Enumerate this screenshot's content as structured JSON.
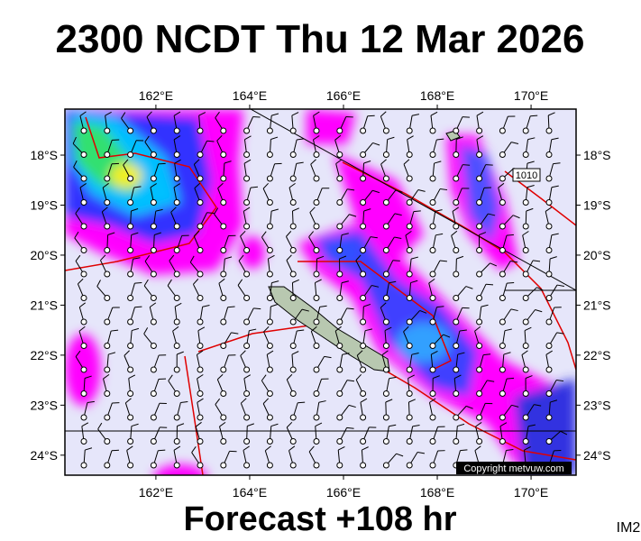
{
  "header": {
    "title": "2300 NCDT Thu 12 Mar 2026"
  },
  "map": {
    "xlim": [
      160.06,
      170.96
    ],
    "ylim": [
      17.08,
      24.4
    ],
    "xticks": [
      {
        "value": 162,
        "label": "162°E"
      },
      {
        "value": 164,
        "label": "164°E"
      },
      {
        "value": 166,
        "label": "166°E"
      },
      {
        "value": 168,
        "label": "168°E"
      },
      {
        "value": 170,
        "label": "170°E"
      }
    ],
    "yticks": [
      {
        "value": 18,
        "label": "18°S"
      },
      {
        "value": 19,
        "label": "19°S"
      },
      {
        "value": 20,
        "label": "20°S"
      },
      {
        "value": 21,
        "label": "21°S"
      },
      {
        "value": 22,
        "label": "22°S"
      },
      {
        "value": 23,
        "label": "23°S"
      },
      {
        "value": 24,
        "label": "24°S"
      }
    ],
    "contour_label": "1010",
    "credit": "Copyright metvuw.com"
  },
  "footer": {
    "forecast": "Forecast +108 hr",
    "image_id": "IM2"
  }
}
